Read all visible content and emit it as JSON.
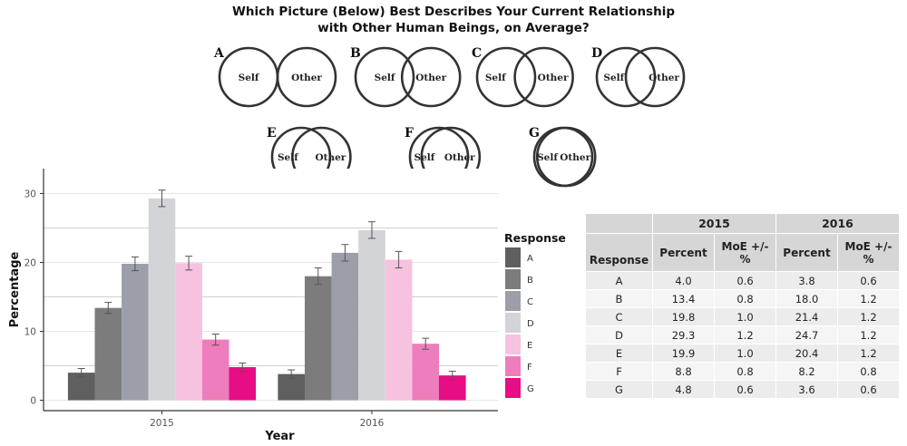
{
  "title": {
    "line1": "Which Picture (Below) Best Describes Your Current Relationship",
    "line2": "with Other Human Beings, on Average?"
  },
  "venn": {
    "self_label": "Self",
    "other_label": "Other",
    "items": [
      {
        "letter": "A",
        "overlap": 0.0
      },
      {
        "letter": "B",
        "overlap": 0.2
      },
      {
        "letter": "C",
        "overlap": 0.35
      },
      {
        "letter": "D",
        "overlap": 0.5
      },
      {
        "letter": "E",
        "overlap": 0.65
      },
      {
        "letter": "F",
        "overlap": 0.8
      },
      {
        "letter": "G",
        "overlap": 0.95
      }
    ]
  },
  "chart_data": {
    "type": "bar",
    "xlabel": "Year",
    "ylabel": "Percentage",
    "ylim": [
      0,
      30
    ],
    "yticks": [
      0,
      10,
      20,
      30
    ],
    "grid": true,
    "categories": [
      "2015",
      "2016"
    ],
    "legend": {
      "title": "Response",
      "placement": "right"
    },
    "series": [
      {
        "name": "A",
        "color": "#5f5f5f",
        "values": [
          4.0,
          3.8
        ],
        "moe": [
          0.6,
          0.6
        ]
      },
      {
        "name": "B",
        "color": "#7c7c7c",
        "values": [
          13.4,
          18.0
        ],
        "moe": [
          0.8,
          1.2
        ]
      },
      {
        "name": "C",
        "color": "#9c9fa7",
        "values": [
          19.8,
          21.4
        ],
        "moe": [
          1.0,
          1.2
        ]
      },
      {
        "name": "D",
        "color": "#d3d4d8",
        "values": [
          29.3,
          24.7
        ],
        "moe": [
          1.2,
          1.2
        ]
      },
      {
        "name": "E",
        "color": "#f6c2df",
        "values": [
          19.9,
          20.4
        ],
        "moe": [
          1.0,
          1.2
        ]
      },
      {
        "name": "F",
        "color": "#ee7dbd",
        "values": [
          8.8,
          8.2
        ],
        "moe": [
          0.8,
          0.8
        ]
      },
      {
        "name": "G",
        "color": "#e60d85",
        "values": [
          4.8,
          3.6
        ],
        "moe": [
          0.6,
          0.6
        ]
      }
    ]
  },
  "table": {
    "year_headers": [
      "2015",
      "2016"
    ],
    "response_header": "Response",
    "percent_header": "Percent",
    "moe_header": "MoE +/- %",
    "rows": [
      [
        "A",
        "4.0",
        "0.6",
        "3.8",
        "0.6"
      ],
      [
        "B",
        "13.4",
        "0.8",
        "18.0",
        "1.2"
      ],
      [
        "C",
        "19.8",
        "1.0",
        "21.4",
        "1.2"
      ],
      [
        "D",
        "29.3",
        "1.2",
        "24.7",
        "1.2"
      ],
      [
        "E",
        "19.9",
        "1.0",
        "20.4",
        "1.2"
      ],
      [
        "F",
        "8.8",
        "0.8",
        "8.2",
        "0.8"
      ],
      [
        "G",
        "4.8",
        "0.6",
        "3.6",
        "0.6"
      ]
    ]
  }
}
